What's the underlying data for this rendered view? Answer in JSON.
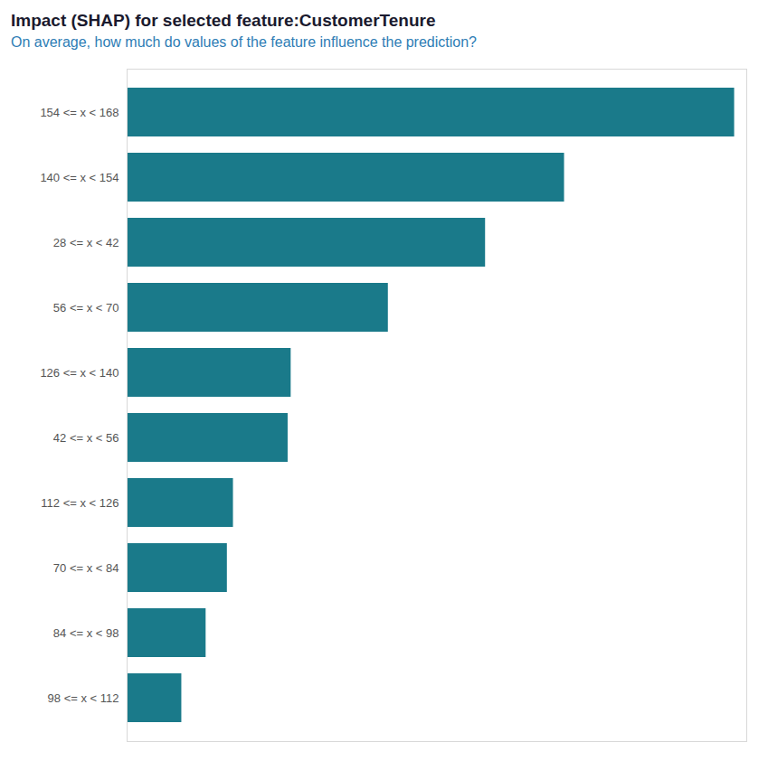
{
  "chart_data": {
    "type": "bar",
    "title": "Impact (SHAP) for selected feature:CustomerTenure",
    "subtitle": "On average, how much do values of the feature influence the prediction?",
    "orientation": "horizontal",
    "categories": [
      "154 <= x < 168",
      "140 <= x < 154",
      "28 <= x < 42",
      "56 <= x < 70",
      "126 <= x < 140",
      "42 <= x < 56",
      "112 <= x < 126",
      "70 <= x < 84",
      "84 <= x < 98",
      "98 <= x < 112"
    ],
    "values": [
      1.0,
      0.72,
      0.59,
      0.43,
      0.27,
      0.265,
      0.175,
      0.165,
      0.13,
      0.09
    ],
    "color": "#1a7a8a",
    "xlim": [
      0,
      1.02
    ],
    "xticks": [],
    "grid": false,
    "tick_labels": "y"
  }
}
